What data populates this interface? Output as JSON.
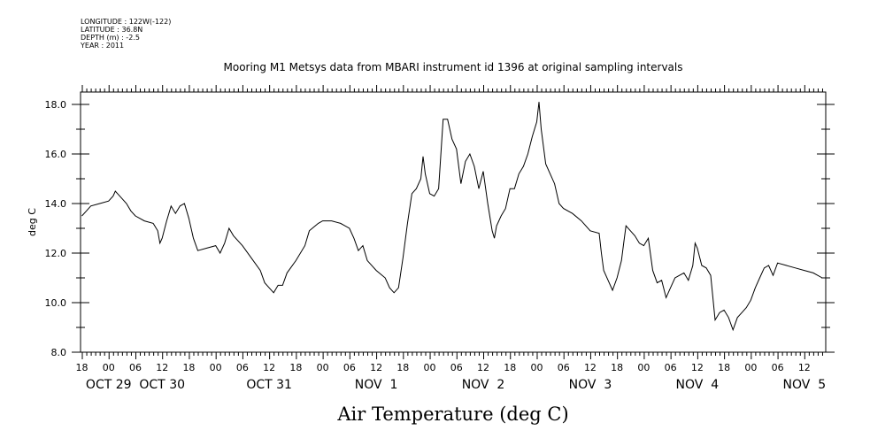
{
  "meta": {
    "longitude": "LONGITUDE : 122W(-122)",
    "latitude": "LATITUDE : 36.8N",
    "depth": "DEPTH (m) : -2.5",
    "year": "YEAR : 2011"
  },
  "chart_data": {
    "type": "line",
    "title": "Mooring M1 Metsys data from MBARI instrument id 1396 at original sampling intervals",
    "xlabel": "Air Temperature (deg C)",
    "ylabel": "deg C",
    "ylim": [
      8.0,
      18.5
    ],
    "yticks": [
      "8.0",
      "10.0",
      "12.0",
      "14.0",
      "16.0",
      "18.0"
    ],
    "xlim_hours": [
      -6.3,
      160.8
    ],
    "xtick_labels": [
      "18",
      "00",
      "06",
      "12",
      "18",
      "00",
      "06",
      "12",
      "18",
      "00",
      "06",
      "12",
      "18",
      "00",
      "06",
      "12",
      "18",
      "00",
      "06",
      "12",
      "18",
      "00",
      "06",
      "12",
      "18",
      "00",
      "06",
      "12"
    ],
    "day_labels": [
      {
        "text": "OCT 29",
        "hour": 0
      },
      {
        "text": "OCT 30",
        "hour": 12
      },
      {
        "text": "OCT 31",
        "hour": 36
      },
      {
        "text": "NOV  1",
        "hour": 60
      },
      {
        "text": "NOV  2",
        "hour": 84
      },
      {
        "text": "NOV  3",
        "hour": 108
      },
      {
        "text": "NOV  4",
        "hour": 132
      },
      {
        "text": "NOV  5",
        "hour": 156
      }
    ],
    "grid": false,
    "series": [
      {
        "points": [
          [
            -6,
            13.5
          ],
          [
            -5,
            13.7
          ],
          [
            -4,
            13.9
          ],
          [
            -2,
            14.0
          ],
          [
            0,
            14.1
          ],
          [
            1,
            14.3
          ],
          [
            1.5,
            14.5
          ],
          [
            2,
            14.4
          ],
          [
            3,
            14.2
          ],
          [
            4,
            14.0
          ],
          [
            5,
            13.7
          ],
          [
            6,
            13.5
          ],
          [
            8,
            13.3
          ],
          [
            10,
            13.2
          ],
          [
            11,
            12.9
          ],
          [
            11.5,
            12.4
          ],
          [
            12,
            12.6
          ],
          [
            13,
            13.3
          ],
          [
            14,
            13.9
          ],
          [
            15,
            13.6
          ],
          [
            16,
            13.9
          ],
          [
            17,
            14.0
          ],
          [
            18,
            13.4
          ],
          [
            19,
            12.6
          ],
          [
            20,
            12.1
          ],
          [
            22,
            12.2
          ],
          [
            24,
            12.3
          ],
          [
            25,
            12.0
          ],
          [
            26,
            12.4
          ],
          [
            27,
            13.0
          ],
          [
            28,
            12.7
          ],
          [
            30,
            12.3
          ],
          [
            32,
            11.8
          ],
          [
            34,
            11.3
          ],
          [
            35,
            10.8
          ],
          [
            36,
            10.6
          ],
          [
            37,
            10.4
          ],
          [
            38,
            10.7
          ],
          [
            39,
            10.7
          ],
          [
            40,
            11.2
          ],
          [
            42,
            11.7
          ],
          [
            44,
            12.3
          ],
          [
            45,
            12.9
          ],
          [
            47,
            13.2
          ],
          [
            48,
            13.3
          ],
          [
            50,
            13.3
          ],
          [
            52,
            13.2
          ],
          [
            54,
            13.0
          ],
          [
            55,
            12.6
          ],
          [
            56,
            12.1
          ],
          [
            57,
            12.3
          ],
          [
            58,
            11.7
          ],
          [
            60,
            11.3
          ],
          [
            62,
            11.0
          ],
          [
            63,
            10.6
          ],
          [
            64,
            10.4
          ],
          [
            65,
            10.6
          ],
          [
            66,
            11.8
          ],
          [
            67,
            13.2
          ],
          [
            68,
            14.4
          ],
          [
            69,
            14.6
          ],
          [
            70,
            15.0
          ],
          [
            70.5,
            15.9
          ],
          [
            71,
            15.2
          ],
          [
            72,
            14.4
          ],
          [
            73,
            14.3
          ],
          [
            74,
            14.6
          ],
          [
            75,
            17.4
          ],
          [
            76,
            17.4
          ],
          [
            77,
            16.6
          ],
          [
            78,
            16.2
          ],
          [
            79,
            14.8
          ],
          [
            80,
            15.7
          ],
          [
            81,
            16.0
          ],
          [
            82,
            15.5
          ],
          [
            83,
            14.6
          ],
          [
            84,
            15.3
          ],
          [
            85,
            14.0
          ],
          [
            86,
            12.9
          ],
          [
            86.5,
            12.6
          ],
          [
            87,
            13.1
          ],
          [
            88,
            13.5
          ],
          [
            89,
            13.8
          ],
          [
            90,
            14.6
          ],
          [
            91,
            14.6
          ],
          [
            92,
            15.2
          ],
          [
            93,
            15.5
          ],
          [
            94,
            16.0
          ],
          [
            95,
            16.7
          ],
          [
            96,
            17.3
          ],
          [
            96.5,
            18.1
          ],
          [
            97,
            17.0
          ],
          [
            98,
            15.6
          ],
          [
            99,
            15.2
          ],
          [
            100,
            14.8
          ],
          [
            101,
            14.0
          ],
          [
            102,
            13.8
          ],
          [
            104,
            13.6
          ],
          [
            106,
            13.3
          ],
          [
            108,
            12.9
          ],
          [
            110,
            12.8
          ],
          [
            110.5,
            12.0
          ],
          [
            111,
            11.3
          ],
          [
            112,
            10.9
          ],
          [
            113,
            10.5
          ],
          [
            114,
            11.0
          ],
          [
            115,
            11.7
          ],
          [
            115.5,
            12.4
          ],
          [
            116,
            13.1
          ],
          [
            117,
            12.9
          ],
          [
            118,
            12.7
          ],
          [
            119,
            12.4
          ],
          [
            120,
            12.3
          ],
          [
            121,
            12.6
          ],
          [
            122,
            11.3
          ],
          [
            123,
            10.8
          ],
          [
            124,
            10.9
          ],
          [
            125,
            10.2
          ],
          [
            126,
            10.6
          ],
          [
            127,
            11.0
          ],
          [
            128,
            11.1
          ],
          [
            129,
            11.2
          ],
          [
            130,
            10.9
          ],
          [
            131,
            11.5
          ],
          [
            131.5,
            12.4
          ],
          [
            132,
            12.2
          ],
          [
            133,
            11.5
          ],
          [
            134,
            11.4
          ],
          [
            135,
            11.1
          ],
          [
            136,
            9.3
          ],
          [
            137,
            9.6
          ],
          [
            138,
            9.7
          ],
          [
            139,
            9.4
          ],
          [
            140,
            8.9
          ],
          [
            141,
            9.4
          ],
          [
            142,
            9.6
          ],
          [
            143,
            9.8
          ],
          [
            144,
            10.1
          ],
          [
            145,
            10.6
          ],
          [
            146,
            11.0
          ],
          [
            147,
            11.4
          ],
          [
            148,
            11.5
          ],
          [
            149,
            11.1
          ],
          [
            150,
            11.6
          ],
          [
            152,
            11.5
          ],
          [
            154,
            11.4
          ],
          [
            156,
            11.3
          ],
          [
            158,
            11.2
          ],
          [
            160,
            11.0
          ],
          [
            162,
            10.9
          ],
          [
            164,
            10.8
          ],
          [
            166,
            10.7
          ]
        ]
      }
    ]
  }
}
